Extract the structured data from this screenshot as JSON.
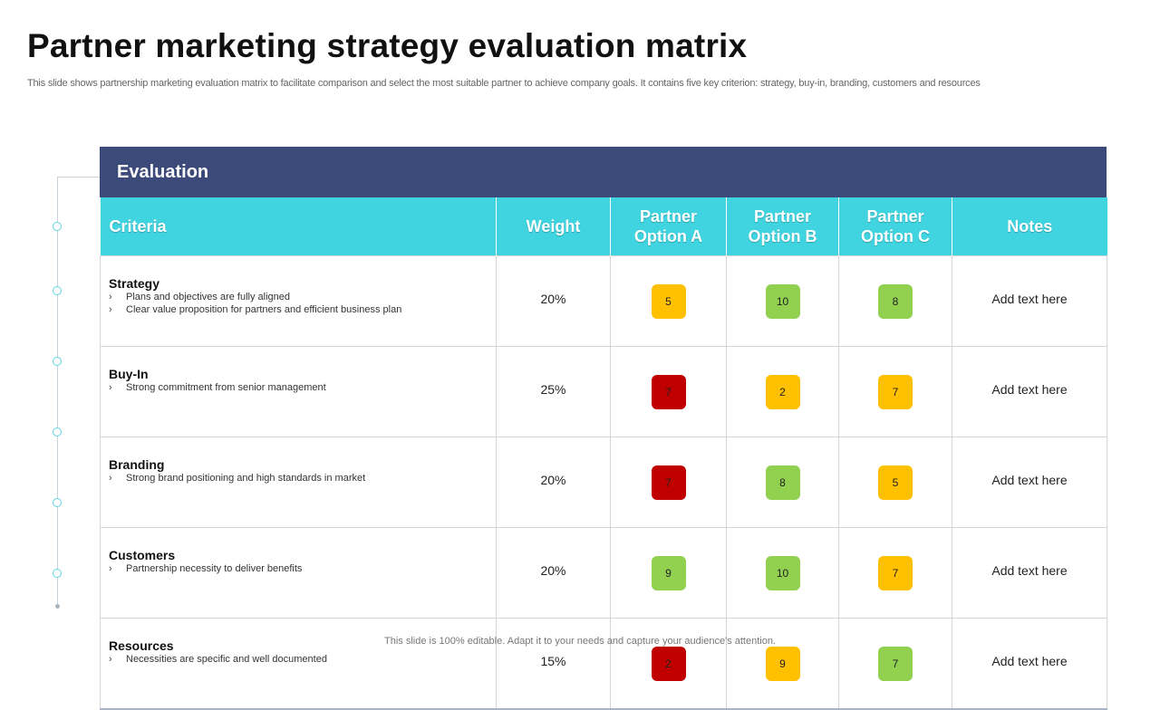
{
  "page": {
    "title": "Partner marketing strategy evaluation matrix",
    "subtitle": "This slide shows partnership marketing evaluation matrix to facilitate comparison and select the most suitable partner to achieve company goals. It contains five key criterion: strategy, buy-in, branding, customers and resources",
    "footer": "This slide is 100% editable. Adapt it to your needs and capture your audience's attention."
  },
  "colors": {
    "header_dark": "#3c4a7a",
    "header_cyan": "#40d4e0",
    "score_red": "#c00000",
    "score_yellow": "#ffc000",
    "score_green": "#92d050"
  },
  "matrix": {
    "section_title": "Evaluation",
    "columns": {
      "criteria": "Criteria",
      "weight": "Weight",
      "option_a": "Partner Option A",
      "option_b": "Partner Option B",
      "option_c": "Partner Option C",
      "notes": "Notes"
    },
    "rows": [
      {
        "name": "Strategy",
        "bullets": [
          "Plans and objectives are fully aligned",
          "Clear value proposition for partners and efficient business plan"
        ],
        "weight": "20%",
        "scores": [
          {
            "value": "5",
            "color": "yellow"
          },
          {
            "value": "10",
            "color": "green"
          },
          {
            "value": "8",
            "color": "green"
          }
        ],
        "notes": "Add text here"
      },
      {
        "name": "Buy-In",
        "bullets": [
          "Strong commitment from senior management"
        ],
        "weight": "25%",
        "scores": [
          {
            "value": "7",
            "color": "red"
          },
          {
            "value": "2",
            "color": "yellow"
          },
          {
            "value": "7",
            "color": "yellow"
          }
        ],
        "notes": "Add text here"
      },
      {
        "name": "Branding",
        "bullets": [
          "Strong brand positioning and high standards in market"
        ],
        "weight": "20%",
        "scores": [
          {
            "value": "7",
            "color": "red"
          },
          {
            "value": "8",
            "color": "green"
          },
          {
            "value": "5",
            "color": "yellow"
          }
        ],
        "notes": "Add text here"
      },
      {
        "name": "Customers",
        "bullets": [
          "Partnership necessity to deliver benefits"
        ],
        "weight": "20%",
        "scores": [
          {
            "value": "9",
            "color": "green"
          },
          {
            "value": "10",
            "color": "green"
          },
          {
            "value": "7",
            "color": "yellow"
          }
        ],
        "notes": "Add text here"
      },
      {
        "name": "Resources",
        "bullets": [
          "Necessities are specific and well documented"
        ],
        "weight": "15%",
        "scores": [
          {
            "value": "2",
            "color": "red"
          },
          {
            "value": "9",
            "color": "yellow"
          },
          {
            "value": "7",
            "color": "green"
          }
        ],
        "notes": "Add text here"
      }
    ]
  }
}
